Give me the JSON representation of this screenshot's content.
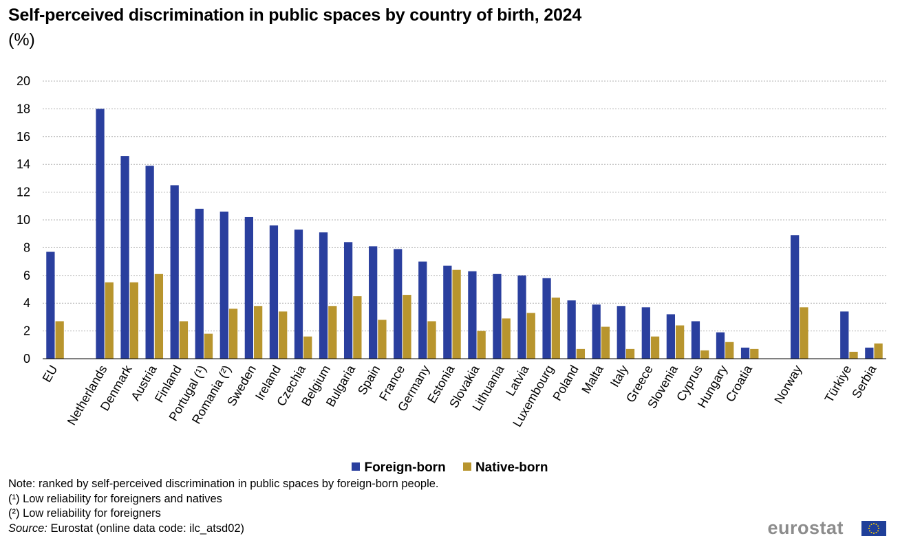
{
  "title": "Self-perceived discrimination in public spaces by country of birth, 2024",
  "unit": "(%)",
  "chart_data": {
    "type": "bar",
    "title": "Self-perceived discrimination in public spaces by country of birth, 2024",
    "ylabel": "(%)",
    "ylim": [
      0,
      20
    ],
    "yticks": [
      "0",
      "2",
      "4",
      "6",
      "8",
      "10",
      "12",
      "14",
      "16",
      "18",
      "20"
    ],
    "grid": true,
    "categories": [
      "EU",
      "Netherlands",
      "Denmark",
      "Austria",
      "Finland",
      "Portugal (¹)",
      "Romania (²)",
      "Sweden",
      "Ireland",
      "Czechia",
      "Belgium",
      "Bulgaria",
      "Spain",
      "France",
      "Germany",
      "Estonia",
      "Slovakia",
      "Lithuania",
      "Latvia",
      "Luxembourg",
      "Poland",
      "Malta",
      "Italy",
      "Greece",
      "Slovenia",
      "Cyprus",
      "Hungary",
      "Croatia",
      "Norway",
      "Türkiye",
      "Serbia"
    ],
    "series": [
      {
        "name": "Foreign-born",
        "color": "#2a3f9e",
        "values": [
          7.7,
          18.0,
          14.6,
          13.9,
          12.5,
          10.8,
          10.6,
          10.2,
          9.6,
          9.3,
          9.1,
          8.4,
          8.1,
          7.9,
          7.0,
          6.7,
          6.3,
          6.1,
          6.0,
          5.8,
          4.2,
          3.9,
          3.8,
          3.7,
          3.2,
          2.7,
          1.9,
          0.8,
          8.9,
          3.4,
          0.8
        ]
      },
      {
        "name": "Native-born",
        "color": "#b8952e",
        "values": [
          2.7,
          5.5,
          5.5,
          6.1,
          2.7,
          1.8,
          3.6,
          3.8,
          3.4,
          1.6,
          3.8,
          4.5,
          2.8,
          4.6,
          2.7,
          6.4,
          2.0,
          2.9,
          3.3,
          4.4,
          0.7,
          2.3,
          0.7,
          1.6,
          2.4,
          0.6,
          1.2,
          0.7,
          3.7,
          0.5,
          1.1
        ]
      }
    ]
  },
  "legend": {
    "foreign": "Foreign-born",
    "native": "Native-born",
    "foreign_color": "#2a3f9e",
    "native_color": "#b8952e"
  },
  "notes": {
    "note": "Note: ranked by self-perceived discrimination in public spaces by foreign-born people.",
    "n1": "(¹) Low reliability for foreigners and natives",
    "n2": "(²) Low reliability for foreigners",
    "source_label": "Source:",
    "source_text": " Eurostat (online data code: ilc_atsd02)"
  },
  "logo": {
    "text": "eurostat"
  }
}
